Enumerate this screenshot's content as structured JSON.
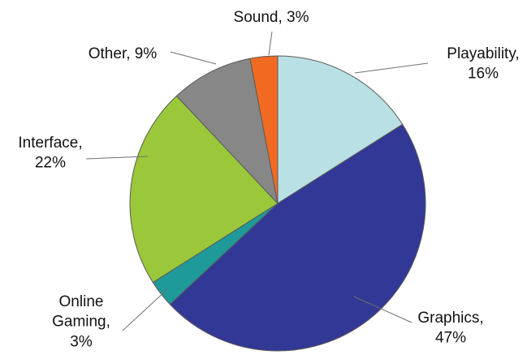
{
  "chart_data": {
    "type": "pie",
    "start_angle_deg": 0,
    "direction": "clockwise",
    "legend": "none",
    "slices": [
      {
        "label": "Playability",
        "value": 16,
        "color": "#b9e0e5",
        "text_lines": [
          "Playability,",
          "16%"
        ]
      },
      {
        "label": "Graphics",
        "value": 47,
        "color": "#323896",
        "text_lines": [
          "Graphics,",
          "47%"
        ]
      },
      {
        "label": "Online Gaming",
        "value": 3,
        "color": "#1f9a9a",
        "text_lines": [
          "Online",
          "Gaming,",
          "3%"
        ]
      },
      {
        "label": "Interface",
        "value": 22,
        "color": "#9ac83a",
        "text_lines": [
          "Interface,",
          "22%"
        ]
      },
      {
        "label": "Other",
        "value": 9,
        "color": "#878787",
        "text_lines": [
          "Other, 9%"
        ]
      },
      {
        "label": "Sound",
        "value": 3,
        "color": "#f26a22",
        "text_lines": [
          "Sound, 3%"
        ]
      }
    ]
  }
}
